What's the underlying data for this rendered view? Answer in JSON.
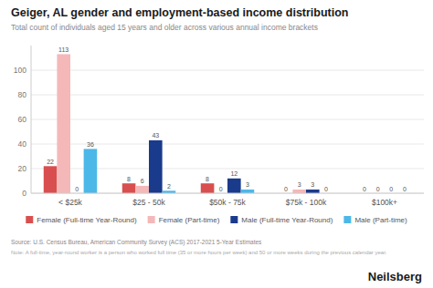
{
  "chart_data": {
    "type": "bar",
    "title": "Geiger, AL gender and employment-based income distribution",
    "subtitle": "Total count of individuals aged 15 years and older across various annual income brackets",
    "categories": [
      "< $25k",
      "$25 - 50k",
      "$50k - 75k",
      "$75k - 100k",
      "$100k+"
    ],
    "series": [
      {
        "name": "Female (Full-time Year-Round)",
        "color": "#d94f4f",
        "values": [
          22,
          8,
          8,
          0,
          0
        ]
      },
      {
        "name": "Female (Part-time)",
        "color": "#f4b8b8",
        "values": [
          113,
          6,
          0,
          3,
          0
        ]
      },
      {
        "name": "Male (Full-time Year-Round)",
        "color": "#1a3a8c",
        "values": [
          0,
          43,
          12,
          3,
          0
        ]
      },
      {
        "name": "Male (Part-time)",
        "color": "#4bb8e8",
        "values": [
          36,
          2,
          3,
          0,
          0
        ]
      }
    ],
    "ylim": [
      0,
      120
    ],
    "yticks": [
      0,
      20,
      40,
      60,
      80,
      100
    ],
    "grid": true,
    "legend": "bottom",
    "data_labels": true,
    "annotations": [
      "Source: U.S. Census Bureau, American Community Survey (ACS) 2017-2021 5-Year Estimates",
      "Note: A full-time, year-round worker is a person who worked full time (35 or more hours per week) and 50 or more weeks during the previous calendar year.",
      "Neilsberg"
    ]
  }
}
